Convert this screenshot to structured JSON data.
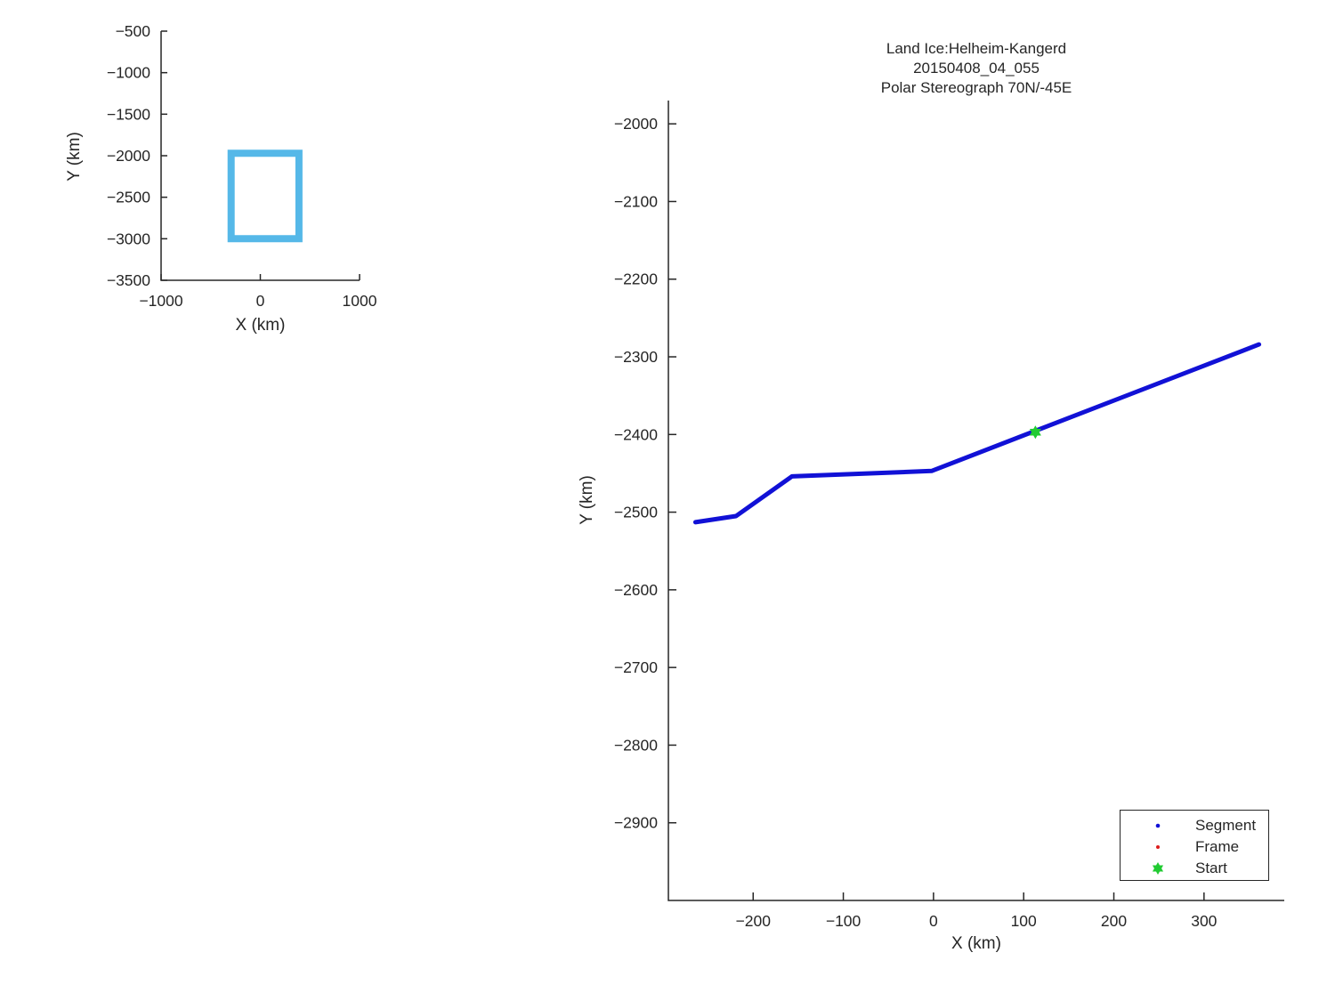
{
  "figure": {
    "background": "#ffffff",
    "axis_color": "#262626",
    "text_color": "#262626"
  },
  "chart_data": [
    {
      "id": "overview",
      "type": "line",
      "title": "",
      "xlabel": "X (km)",
      "ylabel": "Y (km)",
      "xlim": [
        -1000,
        1000
      ],
      "ylim": [
        -3500,
        -500
      ],
      "xticks": [
        -1000,
        0,
        1000
      ],
      "yticks": [
        -500,
        -1000,
        -1500,
        -2000,
        -2500,
        -3000,
        -3500
      ],
      "grid": false,
      "series": [
        {
          "name": "coverage-extent-box",
          "color": "#55b8e8",
          "linewidth": 8,
          "marker": "none",
          "closed": true,
          "x": [
            -294,
            389,
            389,
            -294
          ],
          "y": [
            -1970,
            -1970,
            -3000,
            -3000
          ]
        }
      ]
    },
    {
      "id": "main",
      "type": "line",
      "title": [
        "Land Ice:Helheim-Kangerd",
        "20150408_04_055",
        "Polar Stereograph 70N/-45E"
      ],
      "xlabel": "X (km)",
      "ylabel": "Y (km)",
      "xlim": [
        -294,
        389
      ],
      "ylim": [
        -3000,
        -1970
      ],
      "xticks": [
        -200,
        -100,
        0,
        100,
        200,
        300
      ],
      "yticks": [
        -2000,
        -2100,
        -2200,
        -2300,
        -2400,
        -2500,
        -2600,
        -2700,
        -2800,
        -2900
      ],
      "grid": false,
      "series": [
        {
          "name": "Segment",
          "color": "#1111d6",
          "linewidth": 5,
          "marker": "dot",
          "closed": false,
          "x": [
            -264,
            -219,
            -157,
            -2,
            361
          ],
          "y": [
            -2513,
            -2505,
            -2454,
            -2447,
            -2284
          ]
        },
        {
          "name": "Frame",
          "color": "#dd1c1c",
          "linewidth": 0,
          "marker": "dot",
          "closed": false,
          "x": [],
          "y": []
        },
        {
          "name": "Start",
          "color": "#21cb32",
          "linewidth": 0,
          "marker": "hexagram",
          "markersize": 15,
          "closed": false,
          "x": [
            113
          ],
          "y": [
            -2397
          ]
        }
      ],
      "legend": {
        "position": "inside lower right",
        "entries": [
          {
            "label": "Segment",
            "marker": "dot",
            "color": "#1111d6",
            "marker_size": 4.6
          },
          {
            "label": "Frame",
            "marker": "dot",
            "color": "#dd1c1c",
            "marker_size": 4.0
          },
          {
            "label": "Start",
            "marker": "hexagram",
            "color": "#21cb32",
            "marker_size": 14
          }
        ]
      }
    }
  ]
}
